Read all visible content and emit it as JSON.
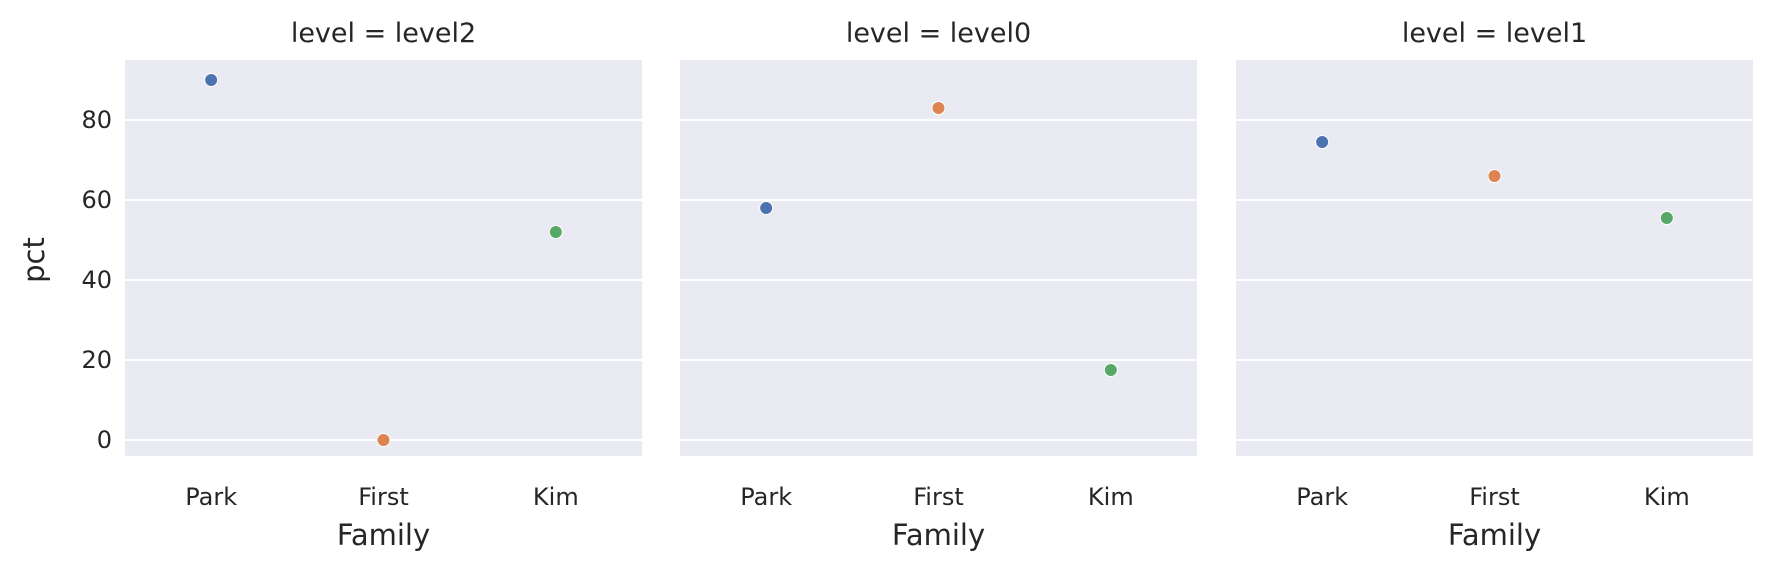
{
  "chart_data": {
    "type": "scatter",
    "xlabel": "Family",
    "ylabel": "pct",
    "categories": [
      "Park",
      "First",
      "Kim"
    ],
    "ylim": [
      -4,
      95
    ],
    "yticks": [
      0,
      20,
      40,
      60,
      80
    ],
    "grid": true,
    "colors": [
      "#4C72B0",
      "#DD8452",
      "#55A868"
    ],
    "facets": [
      {
        "title": "level = level2",
        "values": [
          90,
          0,
          52
        ]
      },
      {
        "title": "level = level0",
        "values": [
          58,
          83,
          17.5
        ]
      },
      {
        "title": "level = level1",
        "values": [
          74.5,
          66,
          55.5
        ]
      }
    ]
  }
}
